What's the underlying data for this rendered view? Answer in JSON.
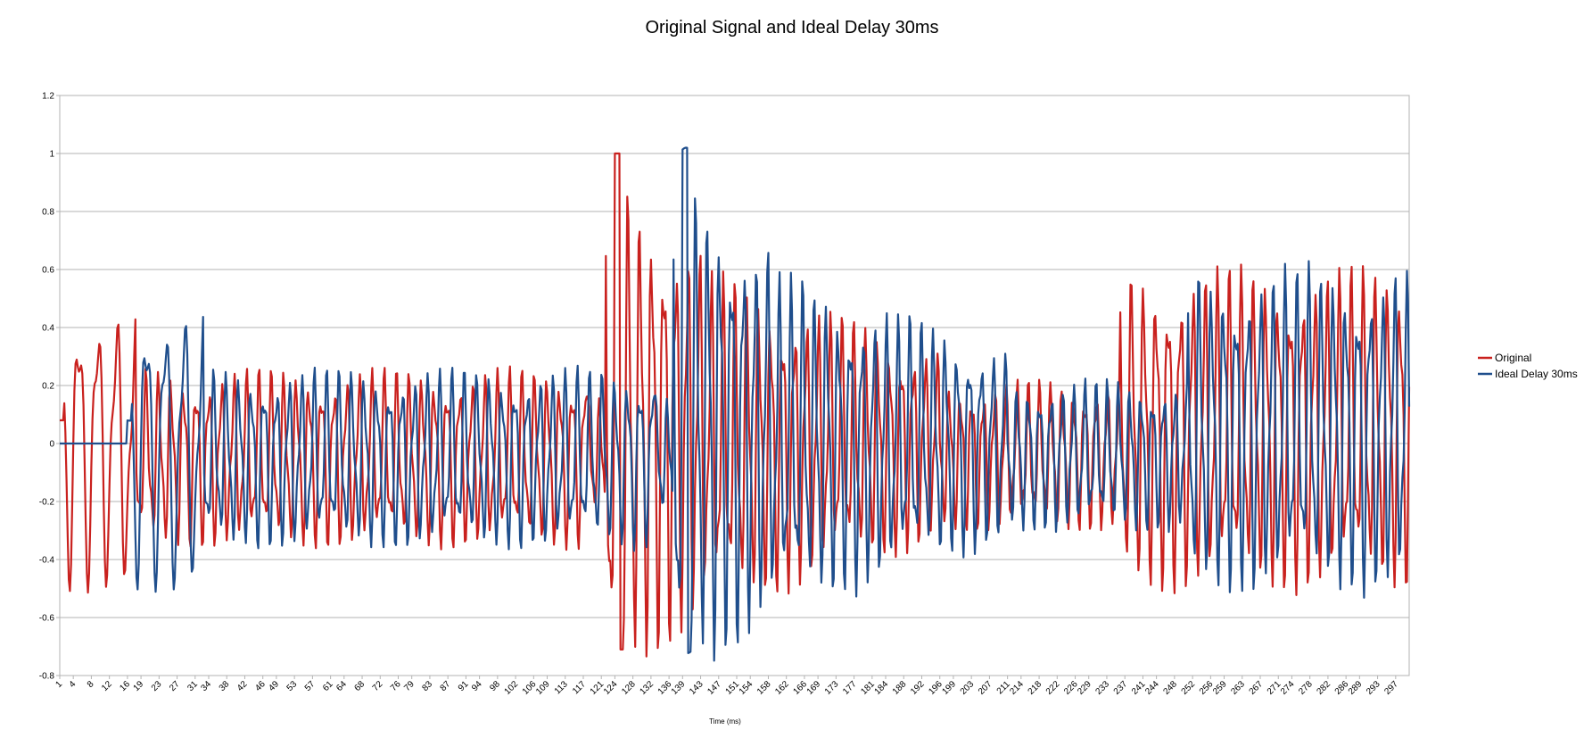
{
  "chart_data": {
    "type": "line",
    "title": "Original Signal and Ideal Delay 30ms",
    "xlabel": "Time (ms)",
    "ylabel": "",
    "ylim": [
      -0.8,
      1.2
    ],
    "yticks": [
      "1.2",
      "1",
      "0.8",
      "0.6",
      "0.4",
      "0.2",
      "0",
      "-0.2",
      "-0.4",
      "-0.6",
      "-0.8"
    ],
    "ytick_values": [
      1.2,
      1,
      0.8,
      0.6,
      0.4,
      0.2,
      0,
      -0.2,
      -0.4,
      -0.6,
      -0.8
    ],
    "xlim": [
      1,
      300
    ],
    "xtick_values": [
      1,
      4,
      8,
      12,
      16,
      19,
      23,
      27,
      31,
      34,
      38,
      42,
      46,
      49,
      53,
      57,
      61,
      64,
      68,
      72,
      76,
      79,
      83,
      87,
      91,
      94,
      98,
      102,
      106,
      109,
      113,
      117,
      121,
      124,
      128,
      132,
      136,
      139,
      143,
      147,
      151,
      154,
      158,
      162,
      166,
      169,
      173,
      177,
      181,
      184,
      188,
      192,
      196,
      199,
      203,
      207,
      211,
      214,
      218,
      222,
      226,
      229,
      233,
      237,
      241,
      244,
      248,
      252,
      256,
      259,
      263,
      267,
      271,
      274,
      278,
      282,
      286,
      289,
      293,
      297
    ],
    "grid": true,
    "legend": "right",
    "series": [
      {
        "name": "Original",
        "color": "#c9211e"
      },
      {
        "name": "Ideal Delay 30ms",
        "color": "#1f4e8c"
      }
    ]
  }
}
